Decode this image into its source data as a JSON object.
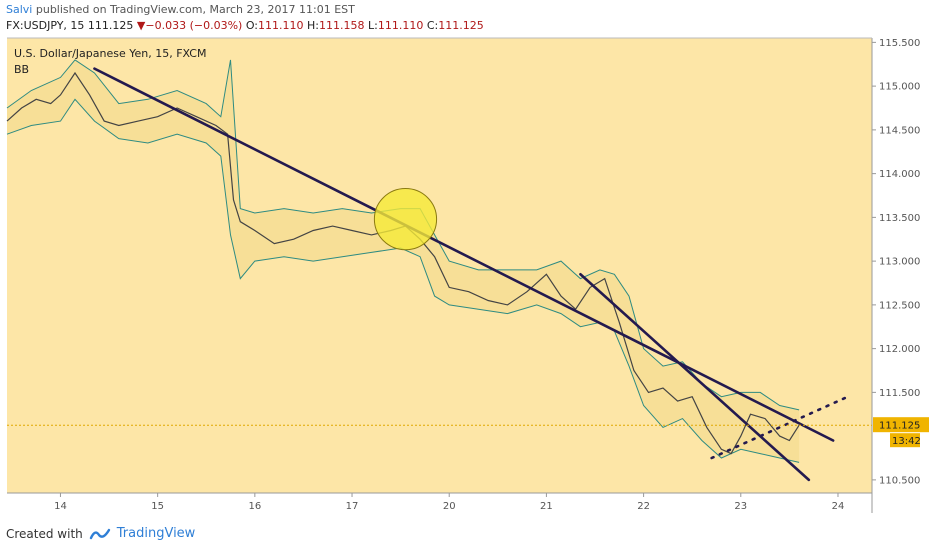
{
  "header": {
    "author": "Salvi",
    "published": "published on TradingView.com, March 23, 2017 11:01 EST"
  },
  "quote": {
    "symbol": "FX:USDJPY, 15",
    "last": "111.125",
    "change_arrow": "▼",
    "change": "−0.033 (−0.03%)",
    "o_label": "O:",
    "o_value": "111.110",
    "h_label": "H:",
    "h_value": "111.158",
    "l_label": "L:",
    "l_value": "111.110",
    "c_label": "C:",
    "c_value": "111.125"
  },
  "footer": {
    "created_with": "Created with",
    "brand": "TradingView"
  },
  "chart_data": {
    "type": "line",
    "title": "U.S. Dollar/Japanese Yen, 15, FXCM",
    "indicator": "BB",
    "xlabel": "",
    "ylabel": "",
    "ylim": [
      110.35,
      115.55
    ],
    "y_ticks": [
      "115.500",
      "115.000",
      "114.500",
      "114.000",
      "113.500",
      "113.000",
      "112.500",
      "112.000",
      "111.500",
      "110.500"
    ],
    "y_tick_values": [
      115.5,
      115.0,
      114.5,
      114.0,
      113.5,
      113.0,
      112.5,
      112.0,
      111.5,
      110.5
    ],
    "x_ticks": [
      "14",
      "15",
      "16",
      "17",
      "20",
      "21",
      "22",
      "23",
      "24"
    ],
    "x_tick_positions": [
      0,
      1,
      2,
      3,
      4,
      5,
      6,
      7,
      8
    ],
    "xlim": [
      -0.55,
      8.35
    ],
    "price_label": "111.125",
    "price_value": 111.125,
    "countdown_label": "13:42",
    "price_series": {
      "name": "",
      "x": [
        -0.55,
        -0.4,
        -0.25,
        -0.1,
        0.0,
        0.15,
        0.3,
        0.45,
        0.6,
        0.8,
        1.0,
        1.2,
        1.4,
        1.6,
        1.72,
        1.78,
        1.85,
        2.0,
        2.2,
        2.4,
        2.6,
        2.8,
        3.0,
        3.2,
        3.4,
        3.55,
        3.7,
        3.85,
        4.0,
        4.2,
        4.4,
        4.6,
        4.8,
        5.0,
        5.15,
        5.3,
        5.45,
        5.6,
        5.75,
        5.9,
        6.05,
        6.2,
        6.35,
        6.5,
        6.65,
        6.8,
        6.9,
        7.0,
        7.1,
        7.25,
        7.4,
        7.5,
        7.6
      ],
      "y": [
        114.6,
        114.75,
        114.85,
        114.8,
        114.9,
        115.15,
        114.9,
        114.6,
        114.55,
        114.6,
        114.65,
        114.75,
        114.65,
        114.55,
        114.45,
        113.7,
        113.45,
        113.35,
        113.2,
        113.25,
        113.35,
        113.4,
        113.35,
        113.3,
        113.35,
        113.4,
        113.25,
        113.05,
        112.7,
        112.65,
        112.55,
        112.5,
        112.65,
        112.85,
        112.6,
        112.45,
        112.7,
        112.8,
        112.3,
        111.75,
        111.5,
        111.55,
        111.4,
        111.45,
        111.1,
        110.85,
        110.8,
        111.0,
        111.25,
        111.2,
        111.0,
        110.95,
        111.125
      ]
    },
    "bb_upper": {
      "name": "",
      "x": [
        -0.55,
        -0.3,
        0.0,
        0.15,
        0.35,
        0.6,
        0.9,
        1.2,
        1.5,
        1.65,
        1.75,
        1.85,
        2.0,
        2.3,
        2.6,
        2.9,
        3.2,
        3.5,
        3.7,
        3.85,
        4.0,
        4.3,
        4.6,
        4.9,
        5.15,
        5.35,
        5.55,
        5.7,
        5.85,
        6.0,
        6.2,
        6.4,
        6.6,
        6.8,
        7.0,
        7.2,
        7.4,
        7.6
      ],
      "y": [
        114.75,
        114.95,
        115.1,
        115.3,
        115.15,
        114.8,
        114.85,
        114.95,
        114.8,
        114.65,
        115.3,
        113.6,
        113.55,
        113.6,
        113.55,
        113.6,
        113.55,
        113.6,
        113.6,
        113.3,
        113.0,
        112.9,
        112.9,
        112.9,
        113.0,
        112.8,
        112.9,
        112.85,
        112.6,
        112.0,
        111.8,
        111.85,
        111.6,
        111.45,
        111.5,
        111.5,
        111.35,
        111.3
      ]
    },
    "bb_lower": {
      "name": "",
      "x": [
        -0.55,
        -0.3,
        0.0,
        0.15,
        0.35,
        0.6,
        0.9,
        1.2,
        1.5,
        1.65,
        1.75,
        1.85,
        2.0,
        2.3,
        2.6,
        2.9,
        3.2,
        3.5,
        3.7,
        3.85,
        4.0,
        4.3,
        4.6,
        4.9,
        5.15,
        5.35,
        5.55,
        5.7,
        5.85,
        6.0,
        6.2,
        6.4,
        6.6,
        6.8,
        7.0,
        7.2,
        7.4,
        7.6
      ],
      "y": [
        114.45,
        114.55,
        114.6,
        114.85,
        114.6,
        114.4,
        114.35,
        114.45,
        114.35,
        114.2,
        113.3,
        112.8,
        113.0,
        113.05,
        113.0,
        113.05,
        113.1,
        113.15,
        113.05,
        112.6,
        112.5,
        112.45,
        112.4,
        112.5,
        112.4,
        112.25,
        112.3,
        112.2,
        111.8,
        111.35,
        111.1,
        111.2,
        110.95,
        110.75,
        110.85,
        110.8,
        110.75,
        110.7
      ]
    },
    "trendlines": [
      {
        "x1": 0.35,
        "y1": 115.2,
        "x2": 7.95,
        "y2": 110.95,
        "style": "solid"
      },
      {
        "x1": 5.35,
        "y1": 112.85,
        "x2": 7.7,
        "y2": 110.5,
        "style": "solid"
      },
      {
        "x1": 6.7,
        "y1": 110.75,
        "x2": 8.1,
        "y2": 111.45,
        "style": "dotted"
      }
    ],
    "highlight_ellipse": {
      "cx": 3.55,
      "cy": 113.48,
      "rx": 0.32,
      "ry": 0.35,
      "color": "#f5ea38"
    },
    "colors": {
      "background": "#fde6a7",
      "band": "#2e8b82",
      "price": "#444444",
      "trendline": "#241a4f",
      "price_line": "#e0a800"
    }
  }
}
